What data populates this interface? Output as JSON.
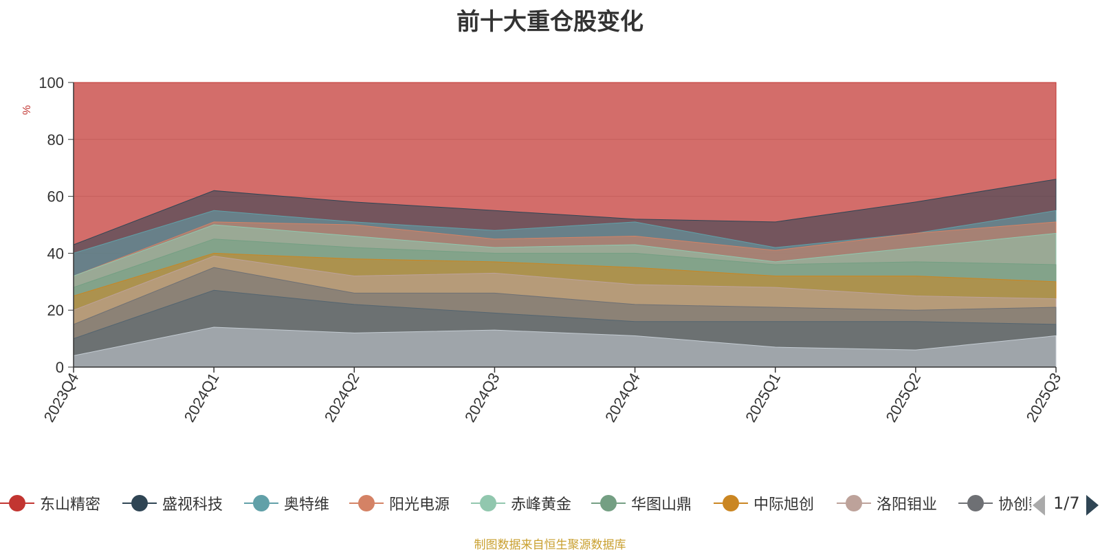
{
  "chart_data": {
    "type": "area",
    "title": "前十大重仓股变化",
    "ylabel": "%",
    "xlabel": "",
    "ylim": [
      0,
      100
    ],
    "yticks": [
      0,
      20,
      40,
      60,
      80,
      100
    ],
    "grid": true,
    "stacked": false,
    "categories": [
      "2023Q4",
      "2024Q1",
      "2024Q2",
      "2024Q3",
      "2024Q4",
      "2025Q1",
      "2025Q2",
      "2025Q3"
    ],
    "series": [
      {
        "name": "东山精密",
        "color": "#c23531",
        "values": [
          100,
          100,
          100,
          100,
          100,
          100,
          100,
          100
        ]
      },
      {
        "name": "盛视科技",
        "color": "#2f4554",
        "values": [
          43,
          62,
          58,
          55,
          52,
          51,
          58,
          66
        ]
      },
      {
        "name": "奥特维",
        "color": "#61a0a8",
        "values": [
          40,
          55,
          51,
          48,
          51,
          42,
          47,
          55
        ]
      },
      {
        "name": "阳光电源",
        "color": "#d48265",
        "values": [
          32,
          51,
          50,
          45,
          46,
          41,
          47,
          51
        ]
      },
      {
        "name": "赤峰黄金",
        "color": "#91c7ae",
        "values": [
          32,
          50,
          46,
          42,
          43,
          37,
          42,
          47
        ]
      },
      {
        "name": "华图山鼎",
        "color": "#749f83",
        "values": [
          28,
          45,
          42,
          40,
          40,
          36,
          37,
          36
        ]
      },
      {
        "name": "中际旭创",
        "color": "#ca8622",
        "values": [
          25,
          40,
          38,
          37,
          35,
          32,
          32,
          30
        ]
      },
      {
        "name": "洛阳钼业",
        "color": "#bda29a",
        "values": [
          20,
          39,
          32,
          33,
          29,
          28,
          25,
          24
        ]
      },
      {
        "name": "协创数据",
        "color": "#6e7074",
        "values": [
          15,
          35,
          26,
          26,
          22,
          21,
          20,
          21
        ]
      },
      {
        "name": "",
        "color": "#546570",
        "values": [
          10,
          27,
          22,
          19,
          16,
          16,
          16,
          15
        ]
      },
      {
        "name": "",
        "color": "#c4ccd3",
        "values": [
          4,
          14,
          12,
          13,
          11,
          7,
          6,
          11
        ]
      }
    ]
  },
  "legend": {
    "items": [
      {
        "label": "东山精密",
        "color": "#c23531"
      },
      {
        "label": "盛视科技",
        "color": "#2f4554"
      },
      {
        "label": "奥特维",
        "color": "#61a0a8"
      },
      {
        "label": "阳光电源",
        "color": "#d48265"
      },
      {
        "label": "赤峰黄金",
        "color": "#91c7ae"
      },
      {
        "label": "华图山鼎",
        "color": "#749f83"
      },
      {
        "label": "中际旭创",
        "color": "#ca8622"
      },
      {
        "label": "洛阳钼业",
        "color": "#bda29a"
      },
      {
        "label": "协创数据",
        "color": "#6e7074"
      }
    ],
    "page_label": "1/7"
  },
  "source_note": "制图数据来自恒生聚源数据库"
}
